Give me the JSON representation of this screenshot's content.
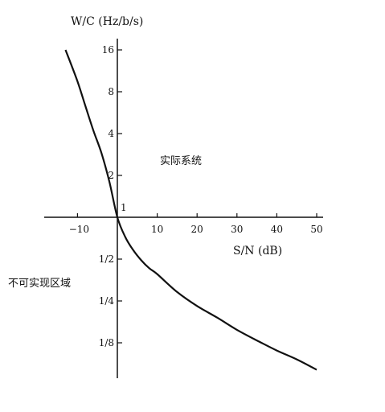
{
  "chart_data": {
    "type": "line",
    "ylabel": "W/C (Hz/b/s)",
    "xlabel": "S/N (dB)",
    "x_ticks": [
      {
        "value": -10,
        "label": "−10"
      },
      {
        "value": 10,
        "label": "10"
      },
      {
        "value": 20,
        "label": "20"
      },
      {
        "value": 30,
        "label": "30"
      },
      {
        "value": 40,
        "label": "40"
      },
      {
        "value": 50,
        "label": "50"
      }
    ],
    "y_ticks_upper": [
      {
        "value": 16,
        "label": "16"
      },
      {
        "value": 8,
        "label": "8"
      },
      {
        "value": 4,
        "label": "4"
      },
      {
        "value": 2,
        "label": "2"
      }
    ],
    "origin_label": "1",
    "y_ticks_lower": [
      {
        "value": 0.5,
        "label": "1/2"
      },
      {
        "value": 0.25,
        "label": "1/4"
      },
      {
        "value": 0.125,
        "label": "1/8"
      }
    ],
    "xlim": [
      -15,
      51
    ],
    "ylim_log2": [
      -3.8,
      4.3
    ],
    "y_scale": "log2",
    "series": [
      {
        "x": [
          -13,
          -10,
          -8,
          -6,
          -4,
          -2,
          0,
          2,
          4,
          6,
          8,
          10,
          15,
          20,
          25,
          30,
          35,
          40,
          45,
          50
        ],
        "y": [
          16,
          9.5,
          6.3,
          4.2,
          2.9,
          1.8,
          1.0,
          0.72,
          0.58,
          0.49,
          0.43,
          0.39,
          0.29,
          0.23,
          0.19,
          0.155,
          0.13,
          0.11,
          0.095,
          0.08
        ]
      }
    ],
    "annotations": [
      {
        "text": "实际系统",
        "region": "above curve"
      },
      {
        "text": "不可实现区域",
        "region": "below curve"
      }
    ],
    "grid": false
  }
}
